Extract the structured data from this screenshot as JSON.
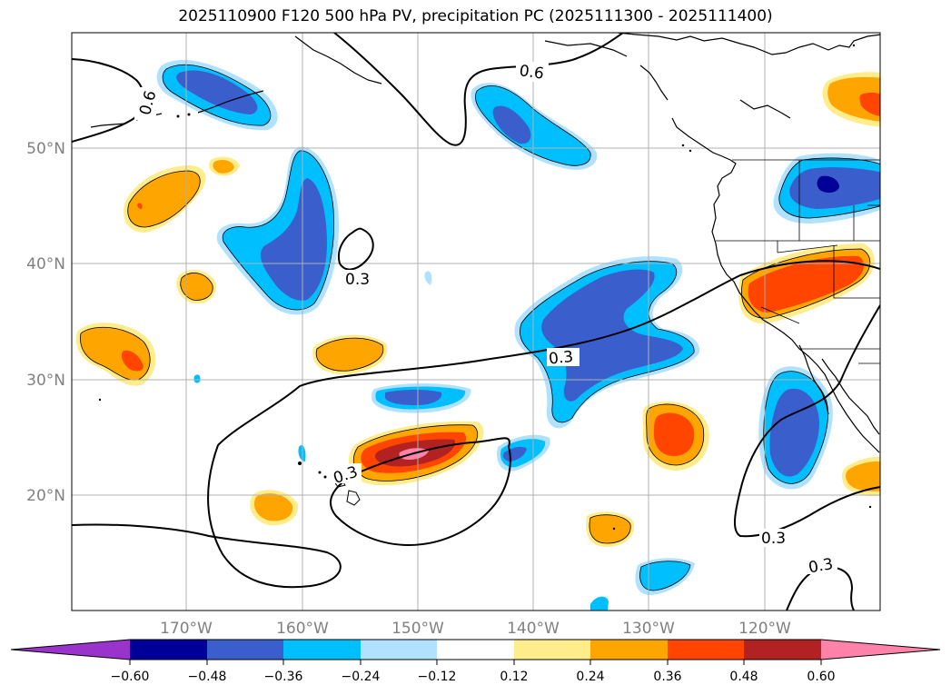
{
  "title": "2025110900 F120 500 hPa PV, precipitation PC (2025111300 - 2025111400)",
  "map": {
    "lat_labels": [
      "50°N",
      "40°N",
      "30°N",
      "20°N"
    ],
    "lon_labels": [
      "170°W",
      "160°W",
      "150°W",
      "140°W",
      "130°W",
      "120°W"
    ],
    "contour_labels": [
      "0.6",
      "0.6",
      "0.3",
      "0.3",
      "0.3",
      "0.3",
      "0.3"
    ]
  },
  "colorbar": {
    "colors": [
      "#9933cc",
      "#000099",
      "#3a5fcd",
      "#00bfff",
      "#b0e2ff",
      "#ffffff",
      "#ffec8b",
      "#ffa500",
      "#ff4500",
      "#b22222",
      "#ff82ab"
    ],
    "tick_labels": [
      "−0.60",
      "−0.48",
      "−0.36",
      "−0.24",
      "−0.12",
      "0.12",
      "0.24",
      "0.36",
      "0.48",
      "0.60"
    ]
  }
}
